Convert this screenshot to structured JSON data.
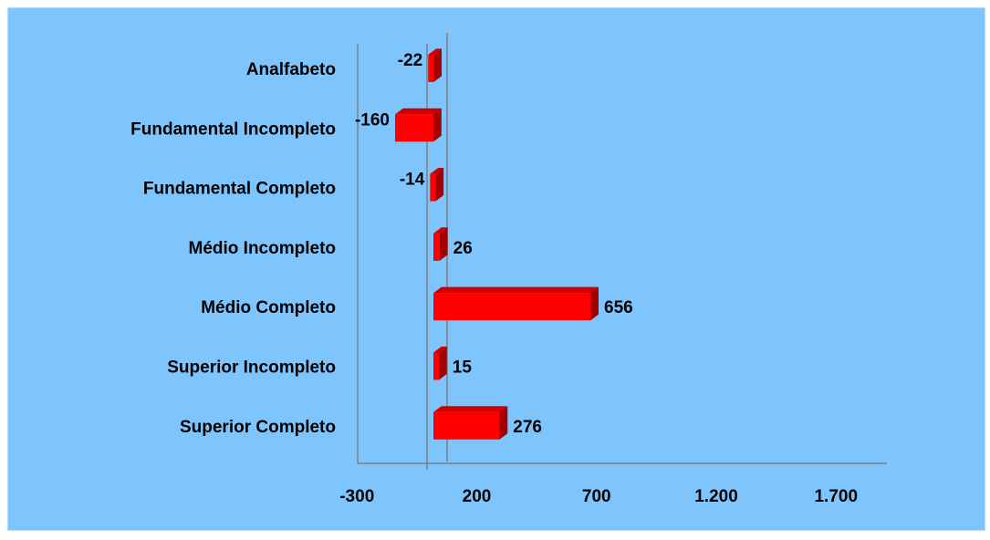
{
  "chart_data": {
    "type": "bar",
    "orientation": "horizontal",
    "style": "3d",
    "categories": [
      "Analfabeto",
      "Fundamental Incompleto",
      "Fundamental Completo",
      "Médio Incompleto",
      "Médio Completo",
      "Superior Incompleto",
      "Superior Completo"
    ],
    "values": [
      -22,
      -160,
      -14,
      26,
      656,
      15,
      276
    ],
    "data_labels": [
      "-22",
      "-160",
      "-14",
      "26",
      "656",
      "15",
      "276"
    ],
    "x_ticks": [
      -300,
      200,
      700,
      1200,
      1700
    ],
    "x_tick_labels": [
      "-300",
      "200",
      "700",
      "1.200",
      "1.700"
    ],
    "xlim": [
      -300,
      1900
    ],
    "title": "",
    "xlabel": "",
    "ylabel": "",
    "grid": false,
    "legend": "none",
    "colors": {
      "background": "#7fc5fd",
      "bar_front": "#ff0000",
      "bar_top": "#d10000",
      "bar_side": "#a30000",
      "axis": "#7f7f7f"
    }
  }
}
